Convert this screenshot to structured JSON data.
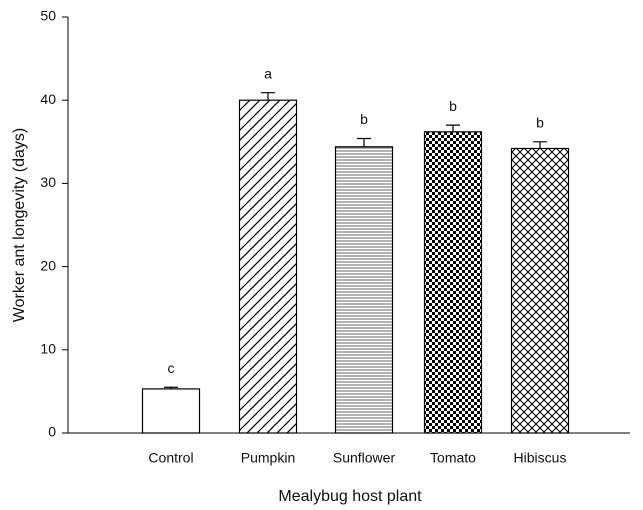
{
  "chart_data": {
    "type": "bar",
    "xlabel": "Mealybug host plant",
    "ylabel": "Worker ant longevity (days)",
    "categories": [
      "Control",
      "Pumpkin",
      "Sunflower",
      "Tomato",
      "Hibiscus"
    ],
    "values": [
      5.3,
      40.0,
      34.4,
      36.2,
      34.2
    ],
    "errors": [
      0.2,
      0.9,
      1.0,
      0.8,
      0.8
    ],
    "annotations": [
      "c",
      "a",
      "b",
      "b",
      "b"
    ],
    "patterns": [
      "none",
      "diagonal",
      "horizontal",
      "checker",
      "crosshatch"
    ],
    "color": "#000000",
    "ylim": [
      0,
      50
    ],
    "yticks": [
      0,
      10,
      20,
      30,
      40,
      50
    ]
  }
}
